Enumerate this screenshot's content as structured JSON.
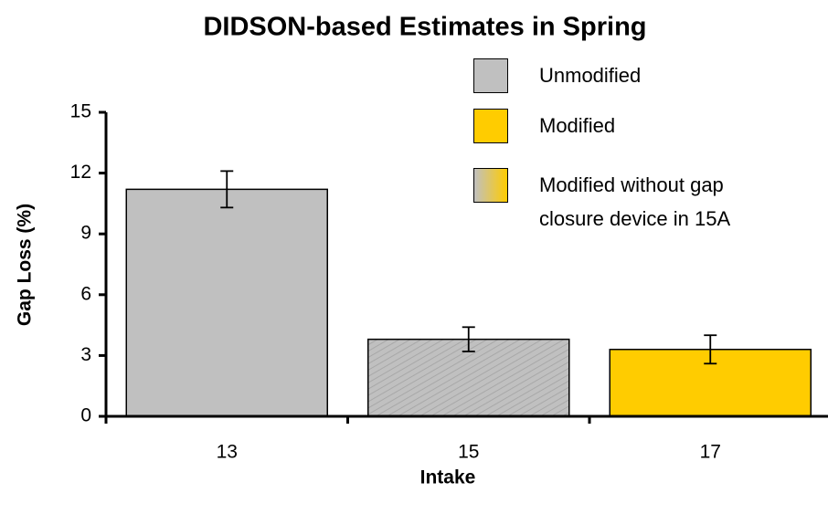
{
  "chart_data": {
    "type": "bar",
    "title": "DIDSON-based Estimates in Spring",
    "x_label": "Intake",
    "y_label": "Gap Loss (%)",
    "categories": [
      "13",
      "15",
      "17"
    ],
    "values": [
      11.2,
      3.8,
      3.3
    ],
    "errors": [
      0.9,
      0.6,
      0.7
    ],
    "colors": [
      "#c0c0c0",
      "#c0c0c0",
      "#ffcc00"
    ],
    "hatch": [
      false,
      true,
      false
    ],
    "ylim": [
      0,
      15
    ],
    "yticks": [
      0,
      3,
      6,
      9,
      12,
      15
    ],
    "legend": [
      {
        "name": "Unmodified",
        "color": "#c0c0c0"
      },
      {
        "name": "Modified",
        "color": "#ffcc00"
      },
      {
        "name": "Modified without gap closure device in 15A",
        "colors": [
          "#c0c0c0",
          "#ffcc00"
        ]
      }
    ]
  }
}
